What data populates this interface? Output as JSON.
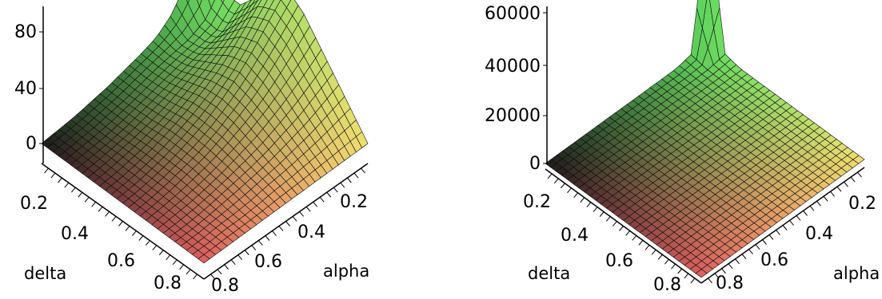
{
  "chart_data": [
    {
      "type": "surface",
      "xlabel": "delta",
      "ylabel": "alpha",
      "zlabel": "",
      "x_ticks": [
        "0.2",
        "0.4",
        "0.6",
        "0.8"
      ],
      "y_ticks": [
        "0.2",
        "0.4",
        "0.6",
        "0.8"
      ],
      "z_ticks": [
        "0",
        "40",
        "80"
      ],
      "zlim": [
        0,
        100
      ],
      "colormap": [
        "#e06060",
        "#1a1a1a",
        "#f0e070",
        "#60e060"
      ],
      "surface": {
        "delta": [
          0.0,
          0.1,
          0.2,
          0.3,
          0.4,
          0.5,
          0.6,
          0.7,
          0.8,
          0.9,
          1.0
        ],
        "alpha": [
          0.0,
          0.1,
          0.2,
          0.3,
          0.4,
          0.5,
          0.6,
          0.7,
          0.8,
          0.9,
          1.0
        ],
        "z": [
          [
            100,
            40,
            30,
            44,
            62,
            68,
            60,
            45,
            30,
            15,
            0
          ],
          [
            45,
            22,
            20,
            35,
            50,
            55,
            48,
            36,
            24,
            12,
            0
          ],
          [
            25,
            16,
            18,
            28,
            38,
            42,
            37,
            28,
            18,
            9,
            0
          ],
          [
            16,
            14,
            16,
            22,
            28,
            31,
            27,
            21,
            14,
            7,
            0
          ],
          [
            12,
            12,
            13,
            17,
            21,
            22,
            20,
            15,
            10,
            5,
            0
          ],
          [
            9,
            9,
            10,
            12,
            15,
            15,
            14,
            11,
            7,
            4,
            0
          ],
          [
            6,
            6,
            7,
            8,
            10,
            10,
            9,
            7,
            5,
            2,
            0
          ],
          [
            4,
            4,
            4,
            5,
            6,
            6,
            6,
            4,
            3,
            1,
            0
          ],
          [
            2,
            2,
            2,
            3,
            3,
            3,
            3,
            2,
            1,
            1,
            0
          ],
          [
            1,
            1,
            1,
            1,
            1,
            1,
            1,
            1,
            0,
            0,
            0
          ],
          [
            0,
            0,
            0,
            0,
            0,
            0,
            0,
            0,
            0,
            0,
            0
          ]
        ]
      }
    },
    {
      "type": "surface",
      "xlabel": "delta",
      "ylabel": "alpha",
      "zlabel": "",
      "x_ticks": [
        "0.2",
        "0.4",
        "0.6",
        "0.8"
      ],
      "y_ticks": [
        "0.2",
        "0.4",
        "0.6",
        "0.8"
      ],
      "z_ticks": [
        "0",
        "20000",
        "40000",
        "60000"
      ],
      "zlim": [
        0,
        62000
      ],
      "colormap": [
        "#e06060",
        "#1a1a1a",
        "#f0e070",
        "#60e060"
      ],
      "surface": {
        "delta": [
          0.0,
          0.1,
          0.2,
          0.3,
          0.4,
          0.5,
          0.6,
          0.7,
          0.8,
          0.9,
          1.0
        ],
        "alpha": [
          0.0,
          0.1,
          0.2,
          0.3,
          0.4,
          0.5,
          0.6,
          0.7,
          0.8,
          0.9,
          1.0
        ],
        "z": [
          [
            60000,
            1500,
            60,
            20,
            10,
            6,
            4,
            3,
            2,
            1,
            0
          ],
          [
            1500,
            200,
            25,
            10,
            6,
            4,
            3,
            2,
            1,
            0,
            0
          ],
          [
            60,
            25,
            12,
            6,
            4,
            3,
            2,
            1,
            1,
            0,
            0
          ],
          [
            20,
            10,
            6,
            4,
            3,
            2,
            1,
            1,
            0,
            0,
            0
          ],
          [
            10,
            6,
            4,
            3,
            2,
            1,
            1,
            0,
            0,
            0,
            0
          ],
          [
            6,
            4,
            3,
            2,
            1,
            1,
            0,
            0,
            0,
            0,
            0
          ],
          [
            4,
            3,
            2,
            1,
            1,
            0,
            0,
            0,
            0,
            0,
            0
          ],
          [
            3,
            2,
            1,
            1,
            0,
            0,
            0,
            0,
            0,
            0,
            0
          ],
          [
            2,
            1,
            1,
            0,
            0,
            0,
            0,
            0,
            0,
            0,
            0
          ],
          [
            1,
            0,
            0,
            0,
            0,
            0,
            0,
            0,
            0,
            0,
            0
          ],
          [
            0,
            0,
            0,
            0,
            0,
            0,
            0,
            0,
            0,
            0,
            0
          ]
        ]
      }
    }
  ]
}
